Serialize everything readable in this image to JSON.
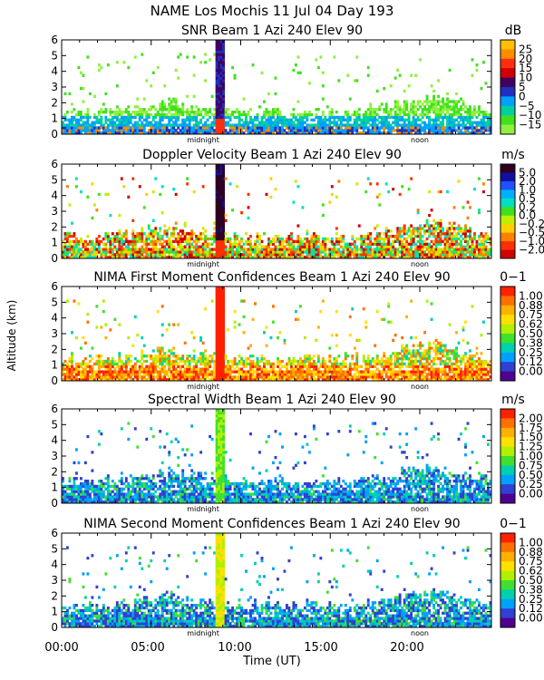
{
  "figure": {
    "title": "NAME Los Mochis    11 Jul 04 Day 193",
    "ylabel": "Altitude (km)",
    "xlabel": "Time (UT)",
    "x_ticks": [
      "00:00",
      "05:00",
      "10:00",
      "15:00",
      "20:00"
    ],
    "midnight_label": "midnight",
    "noon_label": "noon"
  },
  "chart_data": [
    {
      "type": "heatmap",
      "title": "SNR Beam 1 Azi 240 Elev 90",
      "unit": "dB",
      "xlim": [
        0,
        24
      ],
      "ylim": [
        0,
        6
      ],
      "yticks": [
        "0",
        "1",
        "2",
        "3",
        "4",
        "5",
        "6"
      ],
      "colorbar_labels": [
        "25",
        "20",
        "15",
        "10",
        "5",
        "0",
        "−5",
        "−10",
        "−15"
      ],
      "colors": [
        "#ffc000",
        "#ff8c00",
        "#ff3010",
        "#d00000",
        "#400060",
        "#2030c0",
        "#00a0ff",
        "#00d0a0",
        "#40e020",
        "#90f040"
      ],
      "mode": "snr"
    },
    {
      "type": "heatmap",
      "title": "Doppler Velocity Beam 1 Azi 240 Elev 90",
      "unit": "m/s",
      "xlim": [
        0,
        24
      ],
      "ylim": [
        0,
        6
      ],
      "yticks": [
        "0",
        "1",
        "2",
        "3",
        "4",
        "5",
        "6"
      ],
      "colorbar_labels": [
        "5.0",
        "2.0",
        "1.0",
        "0.5",
        "0.2",
        "0.0",
        "−0.2",
        "−0.5",
        "−1.0",
        "−2.0"
      ],
      "colors": [
        "#300020",
        "#1010a0",
        "#2050ff",
        "#00b0ff",
        "#00e0c0",
        "#40e020",
        "#c0f000",
        "#ffd000",
        "#ff8000",
        "#ff3000",
        "#d00000"
      ],
      "mode": "doppler"
    },
    {
      "type": "heatmap",
      "title": "NIMA First Moment Confidences Beam 1 Azi 240 Elev 90",
      "unit": "0−1",
      "xlim": [
        0,
        24
      ],
      "ylim": [
        0,
        6
      ],
      "yticks": [
        "0",
        "1",
        "2",
        "3",
        "4",
        "5",
        "6"
      ],
      "colorbar_labels": [
        "1.00",
        "0.88",
        "0.75",
        "0.62",
        "0.50",
        "0.38",
        "0.25",
        "0.12",
        "0.00"
      ],
      "colors": [
        "#ff2000",
        "#ff7000",
        "#ffb000",
        "#ffe000",
        "#b0f000",
        "#40e030",
        "#00d0b0",
        "#00a0ff",
        "#3040d0",
        "#500090"
      ],
      "mode": "conf1"
    },
    {
      "type": "heatmap",
      "title": "Spectral Width Beam 1 Azi 240 Elev 90",
      "unit": "m/s",
      "xlim": [
        0,
        24
      ],
      "ylim": [
        0,
        6
      ],
      "yticks": [
        "0",
        "1",
        "2",
        "3",
        "4",
        "5",
        "6"
      ],
      "colorbar_labels": [
        "2.00",
        "1.75",
        "1.50",
        "1.25",
        "1.00",
        "0.75",
        "0.50",
        "0.25",
        "0.00"
      ],
      "colors": [
        "#ff2000",
        "#ff7000",
        "#ffb000",
        "#ffe000",
        "#b0f000",
        "#40e030",
        "#00d0b0",
        "#00a0ff",
        "#3040d0",
        "#500090"
      ],
      "mode": "width"
    },
    {
      "type": "heatmap",
      "title": "NIMA Second Moment Confidences Beam 1 Azi 240 Elev 90",
      "unit": "0−1",
      "xlim": [
        0,
        24
      ],
      "ylim": [
        0,
        6
      ],
      "yticks": [
        "0",
        "1",
        "2",
        "3",
        "4",
        "5",
        "6"
      ],
      "colorbar_labels": [
        "1.00",
        "0.88",
        "0.75",
        "0.62",
        "0.50",
        "0.38",
        "0.25",
        "0.12",
        "0.00"
      ],
      "colors": [
        "#ff2000",
        "#ff7000",
        "#ffb000",
        "#ffe000",
        "#b0f000",
        "#40e030",
        "#00d0b0",
        "#00a0ff",
        "#3040d0",
        "#500090"
      ],
      "mode": "conf2"
    }
  ]
}
